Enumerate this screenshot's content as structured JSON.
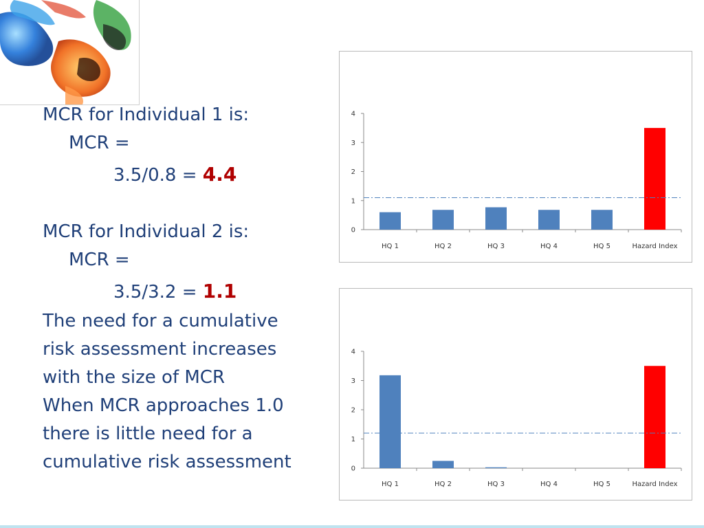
{
  "text": {
    "line1": "MCR for Individual 1 is:",
    "line2": "MCR =",
    "line3_expr": "3.5/0.8 = ",
    "line3_result": "4.4",
    "line4": "MCR for Individual 2 is:",
    "line5": "MCR =",
    "line6_expr": "3.5/3.2 = ",
    "line6_result": "1.1",
    "para1": [
      "The need for a cumulative",
      "risk assessment increases",
      "with the size of MCR"
    ],
    "para2": [
      "When MCR approaches 1.0",
      "there is little need for a",
      "cumulative risk assessment"
    ]
  },
  "colors": {
    "result_red": "#b00000",
    "text_blue": "#1f3f78",
    "bar_blue": "#4f81bd",
    "bar_red": "#ff0000",
    "threshold_line": "#4f81bd"
  },
  "chart_data": [
    {
      "type": "bar",
      "categories": [
        "HQ 1",
        "HQ 2",
        "HQ 3",
        "HQ 4",
        "HQ 5",
        "Hazard Index"
      ],
      "values": [
        0.6,
        0.68,
        0.77,
        0.68,
        0.68,
        3.5
      ],
      "highlight": "Hazard Index",
      "ylim": [
        0,
        4
      ],
      "yticks": [
        0,
        1,
        2,
        3,
        4
      ],
      "threshold": 1.1,
      "grid": false
    },
    {
      "type": "bar",
      "categories": [
        "HQ 1",
        "HQ 2",
        "HQ 3",
        "HQ 4",
        "HQ 5",
        "Hazard Index"
      ],
      "values": [
        3.18,
        0.25,
        0.03,
        0,
        0,
        3.5
      ],
      "highlight": "Hazard Index",
      "ylim": [
        0,
        4
      ],
      "yticks": [
        0,
        1,
        2,
        3,
        4
      ],
      "threshold": 1.2,
      "grid": false
    }
  ]
}
